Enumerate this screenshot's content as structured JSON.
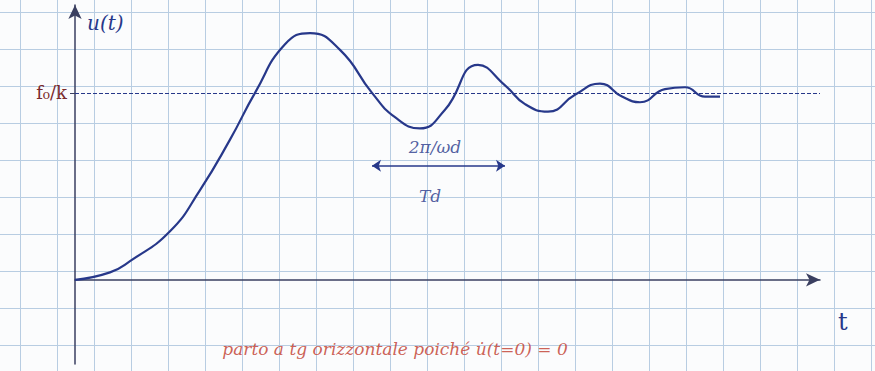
{
  "chart_data": {
    "type": "line",
    "x": [
      0,
      0.35,
      0.55,
      0.95,
      1.25,
      1.55,
      1.8,
      2.1,
      2.35,
      2.65,
      2.97,
      3.2,
      3.45,
      3.7,
      4.03,
      4.3,
      4.5,
      4.73,
      5.0,
      5.25,
      5.47,
      5.65,
      5.9,
      6.1,
      6.3,
      6.45
    ],
    "values": [
      0,
      0.04,
      0.1,
      0.26,
      0.48,
      0.75,
      1.0,
      1.26,
      1.32,
      1.23,
      1.0,
      0.87,
      0.81,
      0.91,
      1.15,
      1.04,
      0.94,
      0.9,
      0.99,
      1.05,
      0.98,
      0.95,
      1.02,
      1.03,
      0.98,
      0.98
    ],
    "color": "#27388a",
    "x_label": "t",
    "y_label": "u(t)",
    "xlim": [
      0,
      7.45
    ],
    "ylim": [
      -0.45,
      1.47
    ],
    "yticks": [
      {
        "value": 1,
        "label": "f₀/k"
      }
    ],
    "tick_labels": "y",
    "grid": true,
    "legend": "none",
    "period_arrow": {
      "x": [
        2.97,
        4.3
      ],
      "y": 0.61,
      "color": "#27388a"
    },
    "annotations": [
      {
        "text": "2π/ωd",
        "x": 3.6,
        "y": 0.71,
        "color": "#27388a"
      },
      {
        "text": "Td",
        "x": 3.55,
        "y": 0.45,
        "color": "#27388a"
      },
      {
        "text": "parto a tg orizzontale poiché u̇(t=0) = 0",
        "x": 3.2,
        "y": -0.37,
        "color": "#c0392b"
      }
    ]
  }
}
